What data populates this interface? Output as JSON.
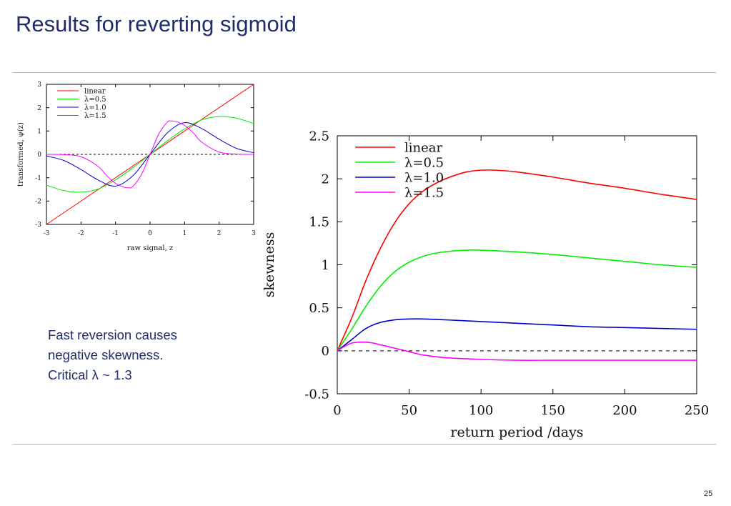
{
  "slide": {
    "title": "Results for reverting sigmoid",
    "body_lines": [
      "Fast reversion causes",
      "negative skewness.",
      "Critical λ ~ 1.3"
    ],
    "page_number": "25"
  },
  "colors": {
    "title": "#1f2e6b",
    "linear": "#ff0000",
    "lambda_0_5": "#00ee00",
    "lambda_1_0": "#0000cc",
    "lambda_1_5": "#ff00ff"
  },
  "chart_data": [
    {
      "type": "line",
      "xlabel": "raw signal, z",
      "ylabel": "transformed, ψ(z)",
      "xlim": [
        -3,
        3
      ],
      "ylim": [
        -3,
        3
      ],
      "xticks": [
        -3,
        -2,
        -1,
        0,
        1,
        2,
        3
      ],
      "yticks": [
        -3,
        -2,
        -1,
        0,
        1,
        2,
        3
      ],
      "xtick_labels": [
        "-3",
        "-2",
        "-1",
        "0",
        "1",
        "2",
        "3"
      ],
      "ytick_labels": [
        "-3",
        "-2",
        "-1",
        "0",
        "1",
        "2",
        "3"
      ],
      "reference_line": {
        "y": 0,
        "style": "dashed"
      },
      "legend_position": "top-left",
      "series": [
        {
          "name": "linear",
          "color": "#ff0000",
          "x": [
            -3,
            3
          ],
          "y": [
            -3,
            3
          ]
        },
        {
          "name": "λ=0.5",
          "color": "#00ee00",
          "x": [
            -3,
            -2.5,
            -2,
            -1.5,
            -1,
            -0.5,
            0,
            0.5,
            1,
            1.5,
            2,
            2.5,
            3
          ],
          "y": [
            -1.32,
            -1.55,
            -1.62,
            -1.48,
            -1.09,
            -0.58,
            0,
            0.58,
            1.09,
            1.48,
            1.62,
            1.55,
            1.32
          ]
        },
        {
          "name": "λ=1.0",
          "color": "#0000cc",
          "x": [
            -3,
            -2.5,
            -2,
            -1.5,
            -1,
            -0.5,
            0,
            0.5,
            1,
            1.5,
            2,
            2.5,
            3
          ],
          "y": [
            -0.07,
            -0.26,
            -0.65,
            -1.1,
            -1.36,
            -0.92,
            0,
            0.92,
            1.36,
            1.1,
            0.65,
            0.26,
            0.07
          ]
        },
        {
          "name": "λ=1.5",
          "color": "#ff00ff",
          "x": [
            -3,
            -2.5,
            -2,
            -1.5,
            -1.25,
            -1,
            -0.75,
            -0.6,
            -0.5,
            -0.25,
            0,
            0.25,
            0.5,
            0.6,
            0.75,
            1,
            1.25,
            1.5,
            2,
            2.5,
            3
          ],
          "y": [
            0,
            -0.01,
            -0.1,
            -0.52,
            -0.92,
            -1.24,
            -1.41,
            -1.43,
            -1.38,
            -0.87,
            0,
            0.87,
            1.38,
            1.43,
            1.41,
            1.24,
            0.92,
            0.52,
            0.1,
            0.01,
            0
          ]
        }
      ]
    },
    {
      "type": "line",
      "xlabel": "return period /days",
      "ylabel": "skewness",
      "xlim": [
        0,
        250
      ],
      "ylim": [
        -0.5,
        2.5
      ],
      "xticks": [
        0,
        50,
        100,
        150,
        200,
        250
      ],
      "yticks": [
        -0.5,
        0,
        0.5,
        1,
        1.5,
        2,
        2.5
      ],
      "xtick_labels": [
        "0",
        "50",
        "100",
        "150",
        "200",
        "250"
      ],
      "ytick_labels": [
        "-0.5",
        "0",
        "0.5",
        "1",
        "1.5",
        "2",
        "2.5"
      ],
      "reference_line": {
        "y": 0,
        "style": "dashed"
      },
      "legend_position": "top-left",
      "series": [
        {
          "name": "linear",
          "color": "#ff0000",
          "x": [
            0,
            10,
            20,
            30,
            40,
            50,
            60,
            70,
            80,
            90,
            100,
            110,
            125,
            150,
            175,
            200,
            225,
            250
          ],
          "y": [
            0,
            0.38,
            0.82,
            1.19,
            1.49,
            1.71,
            1.86,
            1.96,
            2.03,
            2.08,
            2.1,
            2.1,
            2.08,
            2.02,
            1.95,
            1.89,
            1.82,
            1.76
          ]
        },
        {
          "name": "λ=0.5",
          "color": "#00ee00",
          "x": [
            0,
            10,
            20,
            30,
            40,
            50,
            60,
            70,
            80,
            90,
            100,
            125,
            150,
            175,
            200,
            225,
            250
          ],
          "y": [
            0,
            0.25,
            0.52,
            0.75,
            0.92,
            1.03,
            1.1,
            1.14,
            1.16,
            1.17,
            1.17,
            1.15,
            1.12,
            1.08,
            1.04,
            1.0,
            0.97
          ]
        },
        {
          "name": "λ=1.0",
          "color": "#0000cc",
          "x": [
            0,
            10,
            20,
            30,
            40,
            50,
            60,
            75,
            100,
            125,
            150,
            175,
            200,
            225,
            250
          ],
          "y": [
            0,
            0.13,
            0.26,
            0.33,
            0.36,
            0.37,
            0.37,
            0.36,
            0.34,
            0.32,
            0.3,
            0.28,
            0.27,
            0.26,
            0.25
          ]
        },
        {
          "name": "λ=1.5",
          "color": "#ff00ff",
          "x": [
            0,
            5,
            10,
            15,
            20,
            25,
            30,
            35,
            40,
            45,
            50,
            60,
            75,
            100,
            125,
            150,
            175,
            200,
            225,
            250
          ],
          "y": [
            0,
            0.05,
            0.09,
            0.1,
            0.1,
            0.09,
            0.07,
            0.05,
            0.03,
            0.01,
            -0.01,
            -0.05,
            -0.08,
            -0.1,
            -0.11,
            -0.11,
            -0.11,
            -0.11,
            -0.11,
            -0.11
          ]
        }
      ]
    }
  ]
}
